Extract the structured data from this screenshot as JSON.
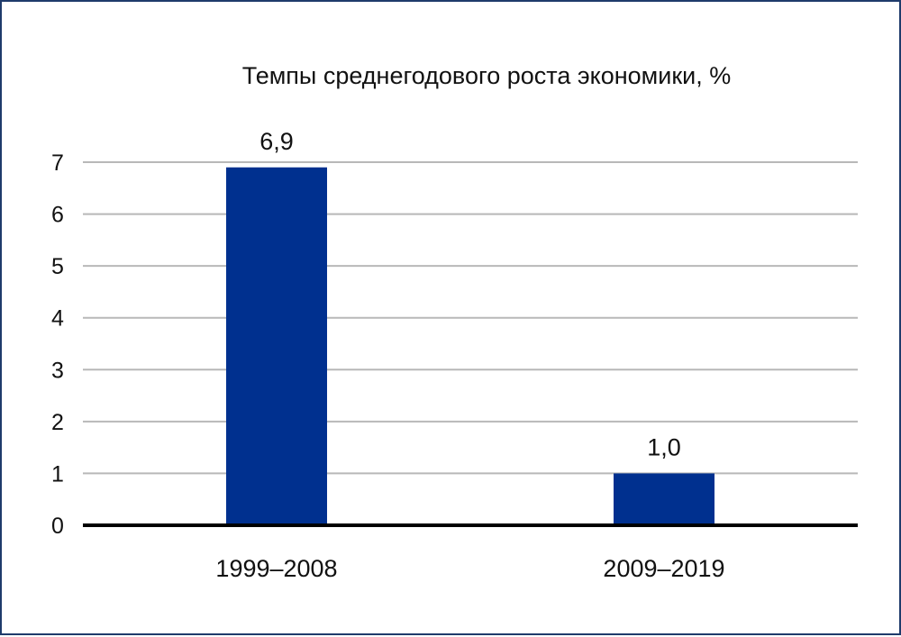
{
  "chart_data": {
    "type": "bar",
    "title": "Темпы среднегодового роста экономики, %",
    "categories": [
      "1999–2008",
      "2009–2019"
    ],
    "values": [
      6.9,
      1.0
    ],
    "data_labels": [
      "6,9",
      "1,0"
    ],
    "ylim": [
      0,
      7
    ],
    "yticks": [
      0,
      1,
      2,
      3,
      4,
      5,
      6,
      7
    ],
    "xlabel": "",
    "ylabel": "",
    "grid": true,
    "legend": "none",
    "bar_color": "#00308f",
    "grid_color": "#b8b8b8",
    "axis_color": "#000000"
  }
}
